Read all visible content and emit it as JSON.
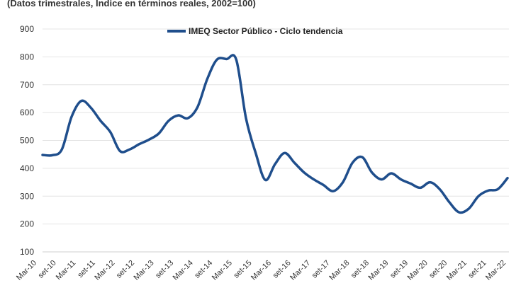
{
  "chart_data": {
    "type": "line",
    "subtitle": "(Datos trimestrales, Índice en términos reales, 2002=100)",
    "xlabel": "",
    "ylabel": "",
    "ylim": [
      100,
      900
    ],
    "yticks": [
      100,
      200,
      300,
      400,
      500,
      600,
      700,
      800,
      900
    ],
    "grid": true,
    "legend_position": "top-center",
    "colors": {
      "series": "#1f4e8c",
      "grid": "#e4e4e4"
    },
    "x_tick_labels": [
      "Mar-10",
      "set-10",
      "Mar-11",
      "set-11",
      "Mar-12",
      "set-12",
      "Mar-13",
      "set-13",
      "Mar-14",
      "set-14",
      "Mar-15",
      "set-15",
      "Mar-16",
      "set-16",
      "Mar-17",
      "set-17",
      "Mar-18",
      "set-18",
      "Mar-19",
      "set-19",
      "Mar-20",
      "set-20",
      "Mar-21",
      "set-21",
      "Mar-22"
    ],
    "series": [
      {
        "name": "IMEQ Sector Público - Ciclo tendencia",
        "values": [
          448,
          447,
          468,
          585,
          642,
          617,
          570,
          530,
          462,
          468,
          487,
          503,
          525,
          570,
          590,
          580,
          620,
          720,
          790,
          792,
          790,
          580,
          455,
          358,
          415,
          455,
          420,
          385,
          360,
          340,
          318,
          350,
          420,
          440,
          385,
          360,
          382,
          360,
          345,
          330,
          350,
          325,
          278,
          242,
          255,
          300,
          320,
          325,
          365
        ]
      }
    ]
  }
}
